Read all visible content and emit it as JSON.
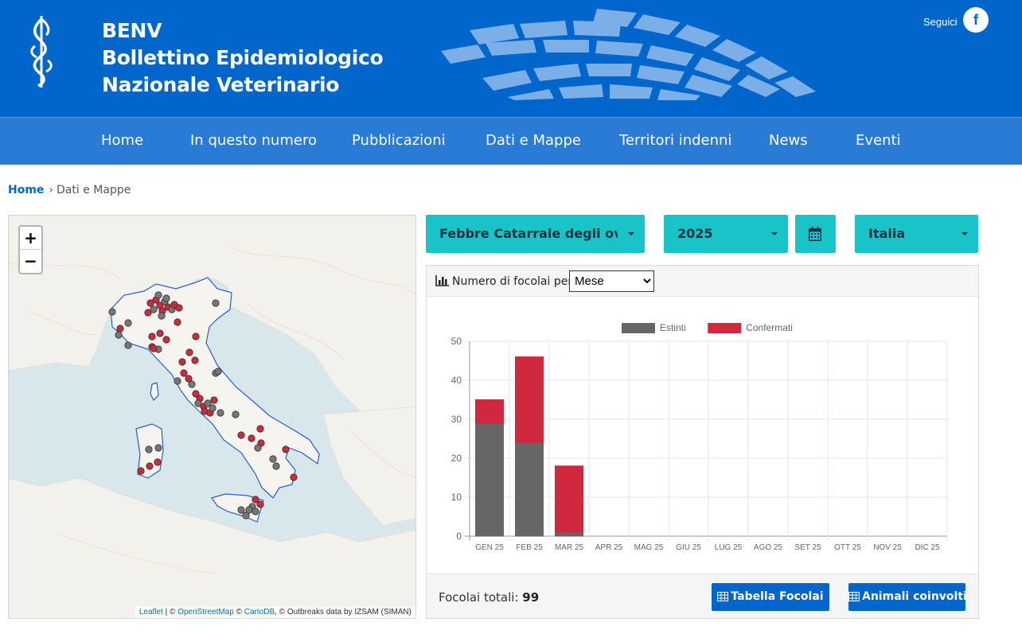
{
  "header": {
    "brand_short": "BENV",
    "brand_line1": "Bollettino Epidemiologico",
    "brand_line2": "Nazionale Veterinario",
    "follow_label": "Seguici",
    "facebook_glyph": "f",
    "accent": "#0066cc"
  },
  "nav": {
    "items": [
      "Home",
      "In questo numero",
      "Pubblicazioni",
      "Dati e Mappe",
      "Territori indenni",
      "News",
      "Eventi"
    ]
  },
  "breadcrumb": {
    "home": "Home",
    "current": "Dati e Mappe"
  },
  "map": {
    "zoom_in": "+",
    "zoom_out": "−",
    "attribution": {
      "leaflet": "Leaflet",
      "sep1": " | © ",
      "osm": "OpenStreetMap",
      "sep2": " © ",
      "carto": "CartoDB",
      "rest": ", © Outbreaks data by IZSAM (SIMAN)"
    },
    "confirmed_color": "#d0283c",
    "extinct_color": "#777777"
  },
  "filters": {
    "disease": "Febbre Catarrale degli ovini (BT)",
    "year": "2025",
    "calendar_icon": "calendar-icon",
    "area": "Italia",
    "color": "#19c4c9"
  },
  "panel": {
    "header_label": "Numero di focolai per",
    "group_by_selected": "Mese",
    "total_label": "Focolai totali:",
    "total_value": "99",
    "btn_table": "Tabella Focolai",
    "btn_animals": "Animali coinvolti"
  },
  "chart_data": {
    "type": "bar",
    "stacked": true,
    "categories": [
      "GEN 25",
      "FEB 25",
      "MAR 25",
      "APR 25",
      "MAG 25",
      "GIU 25",
      "LUG 25",
      "AGO 25",
      "SET 25",
      "OTT 25",
      "NOV 25",
      "DIC 25"
    ],
    "series": [
      {
        "name": "Estinti",
        "color": "#666666",
        "values": [
          29,
          24,
          1,
          0,
          0,
          0,
          0,
          0,
          0,
          0,
          0,
          0
        ]
      },
      {
        "name": "Confermati",
        "color": "#d0283c",
        "values": [
          6,
          22,
          17,
          0,
          0,
          0,
          0,
          0,
          0,
          0,
          0,
          0
        ]
      }
    ],
    "ylim": [
      0,
      50
    ],
    "yticks": [
      0,
      10,
      20,
      30,
      40,
      50
    ],
    "legend": "top-center",
    "grid": true
  }
}
